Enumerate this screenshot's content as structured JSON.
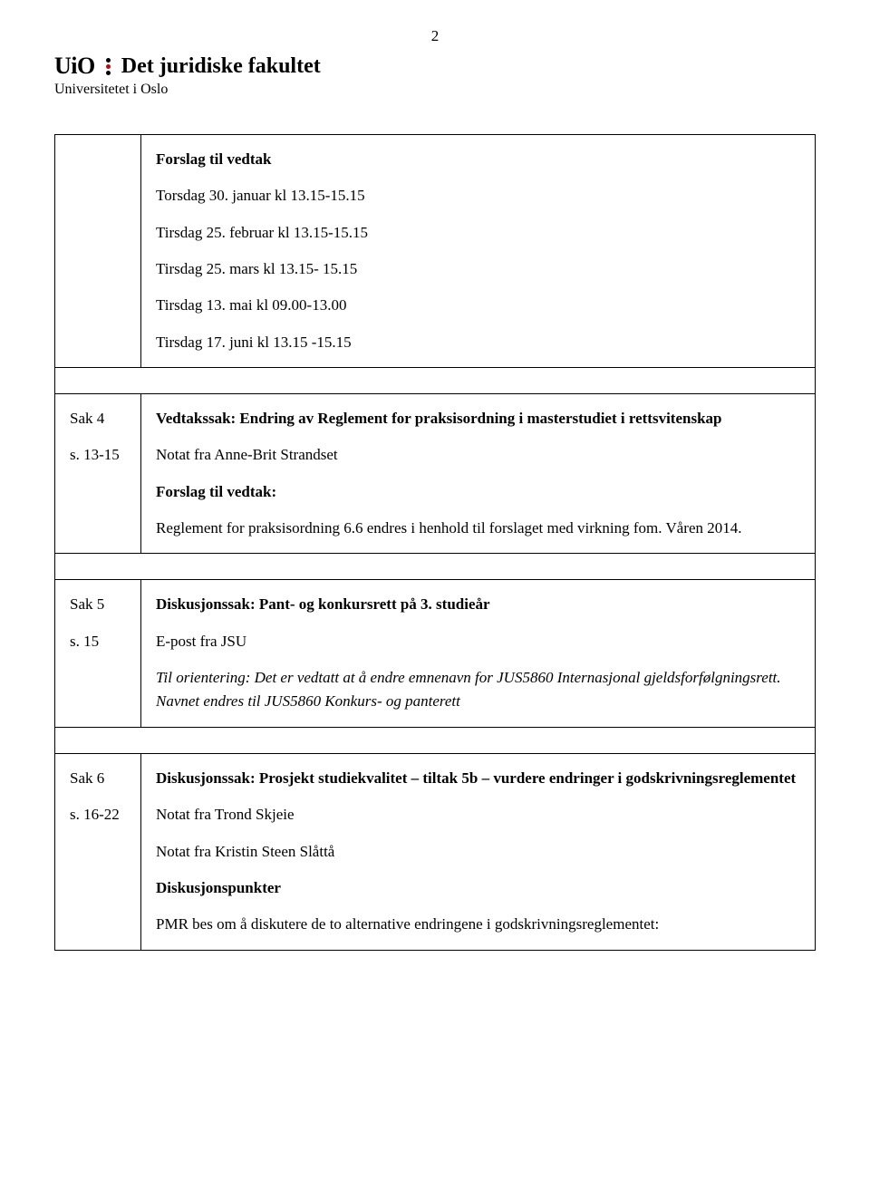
{
  "page_number": "2",
  "header": {
    "logo_text": "UiO",
    "faculty": "Det juridiske fakultet",
    "university": "Universitetet i Oslo"
  },
  "row1": {
    "heading": "Forslag til vedtak",
    "lines": [
      "Torsdag 30. januar kl 13.15-15.15",
      "Tirsdag 25. februar kl 13.15-15.15",
      "Tirsdag 25. mars kl 13.15- 15.15",
      "Tirsdag 13. mai kl 09.00-13.00",
      "Tirsdag 17. juni kl 13.15 -15.15"
    ]
  },
  "sak4": {
    "label": "Sak 4",
    "pages": "s. 13-15",
    "title": "Vedtakssak: Endring av Reglement for praksisordning i masterstudiet i rettsvitenskap",
    "note": "Notat fra Anne-Brit Strandset",
    "proposal_label": "Forslag til vedtak:",
    "proposal_text": "Reglement for praksisordning 6.6 endres i henhold til forslaget med virkning fom. Våren 2014."
  },
  "sak5": {
    "label": "Sak 5",
    "pages": "s. 15",
    "title": "Diskusjonssak: Pant- og konkursrett på 3. studieår",
    "note": "E-post fra JSU",
    "italic_text": "Til orientering: Det er vedtatt at å endre emnenavn for JUS5860 Internasjonal gjeldsforfølgningsrett. Navnet endres til JUS5860 Konkurs- og panterett"
  },
  "sak6": {
    "label": "Sak 6",
    "pages": "s. 16-22",
    "title": "Diskusjonssak: Prosjekt studiekvalitet – tiltak 5b – vurdere endringer i godskrivningsreglementet",
    "note1": "Notat fra Trond Skjeie",
    "note2": "Notat fra Kristin Steen Slåttå",
    "disc_label": "Diskusjonspunkter",
    "disc_text": "PMR bes om å diskutere de to alternative endringene i godskrivningsreglementet:"
  }
}
